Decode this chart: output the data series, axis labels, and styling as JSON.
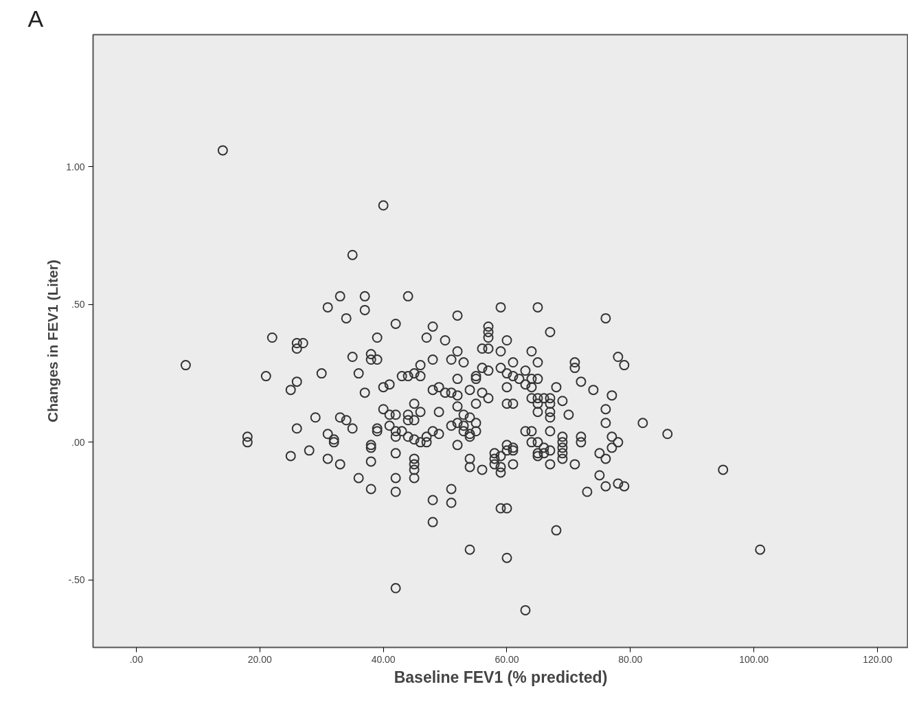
{
  "chart_data": {
    "type": "scatter",
    "xlabel": "Baseline FEV1 (% predicted)",
    "ylabel": "Changes in FEV1 (Liter)",
    "annotations": [
      "A"
    ],
    "xlim": [
      -7,
      125
    ],
    "ylim": [
      -0.745,
      1.48
    ],
    "xticks": [
      {
        "value": 0,
        "label": ".00"
      },
      {
        "value": 20,
        "label": "20.00"
      },
      {
        "value": 40,
        "label": "40.00"
      },
      {
        "value": 60,
        "label": "60.00"
      },
      {
        "value": 80,
        "label": "80.00"
      },
      {
        "value": 100,
        "label": "100.00"
      },
      {
        "value": 120,
        "label": "120.00"
      }
    ],
    "yticks": [
      {
        "value": -0.5,
        "label": "-.50"
      },
      {
        "value": 0,
        "label": ".00"
      },
      {
        "value": 0.5,
        "label": ".50"
      },
      {
        "value": 1,
        "label": "1.00"
      }
    ],
    "grid": false,
    "marker": "circle",
    "series": [
      {
        "color": "#333333",
        "x": [
          14,
          40,
          35,
          8,
          33,
          37,
          44,
          31,
          37,
          34,
          42,
          48,
          52,
          59,
          65,
          76,
          67,
          57,
          57,
          57,
          22,
          26,
          27,
          26,
          39,
          47,
          50,
          60,
          35,
          38,
          38,
          39,
          52,
          51,
          48,
          56,
          57,
          59,
          64,
          61,
          65,
          71,
          78,
          79,
          71,
          21,
          30,
          36,
          43,
          44,
          45,
          46,
          46,
          53,
          55,
          55,
          56,
          57,
          59,
          60,
          61,
          62,
          63,
          64,
          65,
          26,
          25,
          41,
          40,
          37,
          52,
          48,
          49,
          50,
          51,
          52,
          54,
          56,
          57,
          60,
          63,
          64,
          68,
          72,
          74,
          77,
          64,
          65,
          66,
          67,
          69,
          65,
          67,
          45,
          60,
          61,
          55,
          40,
          46,
          49,
          52,
          53,
          65,
          67,
          76,
          41,
          42,
          44,
          70,
          67,
          29,
          33,
          34,
          44,
          45,
          54,
          55,
          52,
          53,
          51,
          39,
          39,
          35,
          26,
          41,
          42,
          43,
          44,
          48,
          49,
          53,
          54,
          55,
          54,
          63,
          64,
          67,
          82,
          76,
          86,
          31,
          32,
          32,
          18,
          18,
          42,
          45,
          46,
          47,
          47,
          52,
          60,
          61,
          64,
          65,
          66,
          67,
          69,
          69,
          69,
          69,
          69,
          72,
          72,
          77,
          78,
          77,
          38,
          38,
          25,
          28,
          31,
          33,
          38,
          42,
          45,
          45,
          45,
          45,
          58,
          58,
          59,
          60,
          61,
          59,
          59,
          58,
          61,
          54,
          54,
          56,
          65,
          65,
          66,
          67,
          71,
          75,
          76,
          75,
          76,
          78,
          79,
          95,
          36,
          42,
          38,
          42,
          51,
          51,
          48,
          48,
          59,
          60,
          73,
          68,
          54,
          60,
          101,
          42,
          63
        ],
        "values": [
          1.06,
          0.86,
          0.68,
          0.28,
          0.53,
          0.53,
          0.53,
          0.49,
          0.48,
          0.45,
          0.43,
          0.42,
          0.46,
          0.49,
          0.49,
          0.45,
          0.4,
          0.42,
          0.4,
          0.38,
          0.38,
          0.36,
          0.36,
          0.34,
          0.38,
          0.38,
          0.37,
          0.37,
          0.31,
          0.32,
          0.3,
          0.3,
          0.33,
          0.3,
          0.3,
          0.34,
          0.34,
          0.33,
          0.33,
          0.29,
          0.29,
          0.29,
          0.31,
          0.28,
          0.27,
          0.24,
          0.25,
          0.25,
          0.24,
          0.24,
          0.25,
          0.24,
          0.28,
          0.29,
          0.24,
          0.23,
          0.27,
          0.26,
          0.27,
          0.25,
          0.24,
          0.23,
          0.26,
          0.23,
          0.23,
          0.22,
          0.19,
          0.21,
          0.2,
          0.18,
          0.23,
          0.19,
          0.2,
          0.18,
          0.18,
          0.17,
          0.19,
          0.18,
          0.16,
          0.2,
          0.21,
          0.2,
          0.2,
          0.22,
          0.19,
          0.17,
          0.16,
          0.16,
          0.16,
          0.16,
          0.15,
          0.14,
          0.14,
          0.14,
          0.14,
          0.14,
          0.14,
          0.12,
          0.11,
          0.11,
          0.13,
          0.1,
          0.11,
          0.11,
          0.12,
          0.1,
          0.1,
          0.1,
          0.1,
          0.09,
          0.09,
          0.09,
          0.08,
          0.08,
          0.08,
          0.09,
          0.07,
          0.07,
          0.06,
          0.06,
          0.05,
          0.04,
          0.05,
          0.05,
          0.06,
          0.04,
          0.04,
          0.02,
          0.04,
          0.03,
          0.04,
          0.03,
          0.04,
          0.02,
          0.04,
          0.04,
          0.04,
          0.07,
          0.07,
          0.03,
          0.03,
          0.01,
          0.0,
          0.02,
          0.0,
          0.02,
          0.01,
          0.0,
          0.0,
          0.02,
          -0.01,
          -0.01,
          -0.02,
          0.0,
          0.0,
          -0.02,
          -0.03,
          0.02,
          0.0,
          -0.02,
          -0.04,
          -0.06,
          0.02,
          0.0,
          0.02,
          0.0,
          -0.02,
          -0.01,
          -0.02,
          -0.05,
          -0.03,
          -0.06,
          -0.08,
          -0.07,
          -0.04,
          -0.06,
          -0.08,
          -0.1,
          -0.13,
          -0.04,
          -0.06,
          -0.05,
          -0.03,
          -0.03,
          -0.09,
          -0.11,
          -0.08,
          -0.08,
          -0.06,
          -0.09,
          -0.1,
          -0.04,
          -0.05,
          -0.04,
          -0.08,
          -0.08,
          -0.04,
          -0.06,
          -0.12,
          -0.16,
          -0.15,
          -0.16,
          -0.1,
          -0.13,
          -0.13,
          -0.17,
          -0.18,
          -0.17,
          -0.22,
          -0.21,
          -0.29,
          -0.24,
          -0.24,
          -0.18,
          -0.32,
          -0.39,
          -0.42,
          -0.39,
          -0.53,
          -0.61
        ]
      }
    ]
  }
}
